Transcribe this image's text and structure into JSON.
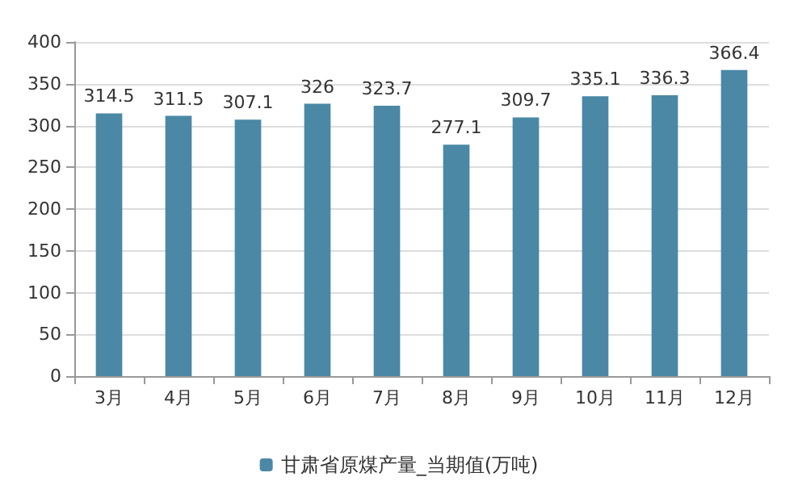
{
  "chart_data": {
    "type": "bar",
    "categories": [
      "3月",
      "4月",
      "5月",
      "6月",
      "7月",
      "8月",
      "9月",
      "10月",
      "11月",
      "12月"
    ],
    "series": [
      {
        "name": "甘肃省原煤产量_当期值(万吨)",
        "color": "#4a88a6",
        "values": [
          314.5,
          311.5,
          307.1,
          326,
          323.7,
          277.1,
          309.7,
          335.1,
          336.3,
          366.4
        ]
      }
    ],
    "ylim": [
      0,
      400
    ],
    "yticks": [
      0,
      50,
      100,
      150,
      200,
      250,
      300,
      350,
      400
    ],
    "grid": "y",
    "legend": "bottom",
    "data_labels": true
  }
}
